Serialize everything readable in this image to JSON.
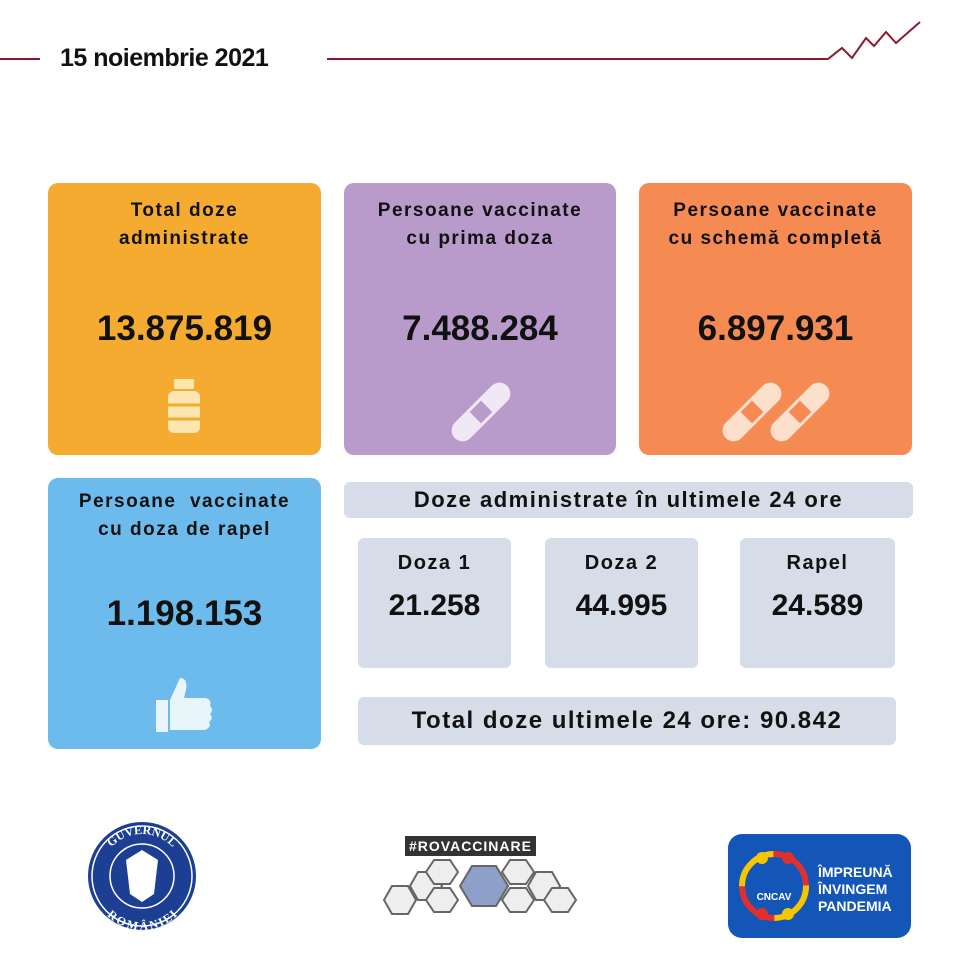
{
  "header": {
    "date": "15 noiembrie 2021",
    "accent": "#8b1a2e"
  },
  "cards": [
    {
      "title1": "Total doze",
      "title2": "administrate",
      "value": "13.875.819",
      "color": "#f5ab2f",
      "icon": "vaccine-vial-icon"
    },
    {
      "title1": "Persoane vaccinate",
      "title2": "cu prima doza",
      "value": "7.488.284",
      "color": "#b99bcb",
      "icon": "bandage-icon"
    },
    {
      "title1": "Persoane vaccinate",
      "title2": "cu schemă completă",
      "value": "6.897.931",
      "color": "#f58a52",
      "icon": "two-bandages-icon"
    },
    {
      "title1": "Persoane  vaccinate",
      "title2": "cu doza de rapel",
      "value": "1.198.153",
      "color": "#6cbbec",
      "icon": "thumbs-up-icon"
    }
  ],
  "last24": {
    "heading": "Doze administrate în ultimele 24 ore",
    "items": [
      {
        "label": "Doza 1",
        "value": "21.258"
      },
      {
        "label": "Doza 2",
        "value": "44.995"
      },
      {
        "label": "Rapel",
        "value": "24.589"
      }
    ],
    "total": "Total doze ultimele 24 ore: 90.842"
  },
  "logos": {
    "gov": "GUVERNUL ROMÂNIEI",
    "rovacc": "#ROVACCINARE",
    "cncav": "CNCAV",
    "cncav_text": [
      "ÎMPREUNĂ",
      "ÎNVINGEM",
      "PANDEMIA"
    ]
  }
}
